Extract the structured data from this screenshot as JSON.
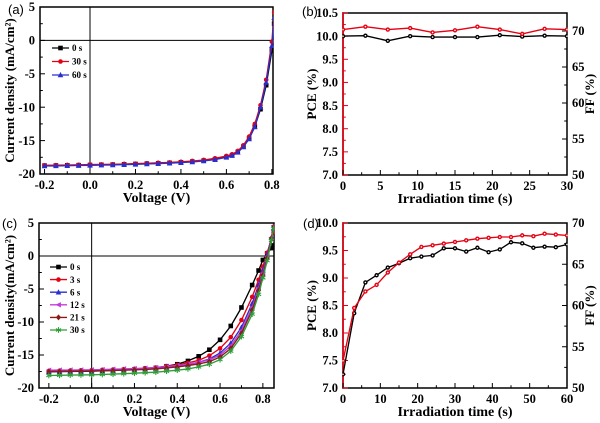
{
  "figure": {
    "background": "#ffffff"
  },
  "colors": {
    "black": "#000000",
    "red": "#e60012",
    "blue": "#2a2ecc",
    "magenta": "#c43bd9",
    "wine": "#8b1a1a",
    "green": "#2e9e38"
  },
  "chart_data": [
    {
      "panel_letter": "(a)",
      "type": "line",
      "xlabel": "Voltage (V)",
      "ylabel": "Current density (mA/cm²)",
      "xlim": [
        -0.22,
        0.805
      ],
      "ylim": [
        -20,
        5
      ],
      "xticks": [
        -0.2,
        0.0,
        0.2,
        0.4,
        0.6,
        0.8
      ],
      "xtick_labels": [
        "-0.2",
        "0.0",
        "0.2",
        "0.4",
        "0.6",
        "0.8"
      ],
      "yticks": [
        -20,
        -15,
        -10,
        -5,
        0,
        5
      ],
      "ytick_labels": [
        "-20",
        "-15",
        "-10",
        "-5",
        "0",
        "5"
      ],
      "x_minor": 0.1,
      "y_minor": 2.5,
      "zero_lines": true,
      "legend": true,
      "grid": false,
      "x": [
        -0.2,
        -0.15,
        -0.1,
        -0.05,
        0,
        0.05,
        0.1,
        0.15,
        0.2,
        0.25,
        0.3,
        0.35,
        0.4,
        0.45,
        0.5,
        0.55,
        0.6,
        0.625,
        0.65,
        0.675,
        0.7,
        0.725,
        0.75,
        0.775,
        0.8,
        0.81
      ],
      "series": [
        {
          "name": "0 s",
          "color": "#000000",
          "marker": "square",
          "axis": "left",
          "y": [
            -18.75,
            -18.73,
            -18.7,
            -18.68,
            -18.65,
            -18.62,
            -18.6,
            -18.55,
            -18.5,
            -18.45,
            -18.4,
            -18.33,
            -18.25,
            -18.15,
            -18.0,
            -17.8,
            -17.45,
            -17.2,
            -16.7,
            -15.9,
            -14.7,
            -12.9,
            -10.3,
            -6.7,
            -1.5,
            2.5
          ]
        },
        {
          "name": "30 s",
          "color": "#e60012",
          "marker": "circle",
          "axis": "left",
          "y": [
            -18.7,
            -18.68,
            -18.65,
            -18.63,
            -18.6,
            -18.57,
            -18.55,
            -18.5,
            -18.45,
            -18.4,
            -18.33,
            -18.27,
            -18.18,
            -18.05,
            -17.9,
            -17.65,
            -17.3,
            -17.05,
            -16.55,
            -15.7,
            -14.4,
            -12.5,
            -9.7,
            -5.9,
            -0.2,
            4.2
          ]
        },
        {
          "name": "60 s",
          "color": "#2a2ecc",
          "marker": "triangle",
          "axis": "left",
          "y": [
            -18.8,
            -18.78,
            -18.75,
            -18.73,
            -18.7,
            -18.67,
            -18.65,
            -18.6,
            -18.55,
            -18.5,
            -18.45,
            -18.38,
            -18.3,
            -18.2,
            -18.05,
            -17.85,
            -17.5,
            -17.25,
            -16.75,
            -15.95,
            -14.75,
            -12.95,
            -10.0,
            -6.3,
            -0.8,
            3.4
          ]
        }
      ]
    },
    {
      "panel_letter": "(b)",
      "type": "line",
      "xlabel": "Irradiation time (s)",
      "ylabel": "PCE (%)",
      "ylabel_right": "FF (%)",
      "xlim": [
        0,
        30
      ],
      "ylim": [
        7.0,
        10.5
      ],
      "ylim_right": [
        50,
        72.5
      ],
      "xticks": [
        0,
        5,
        10,
        15,
        20,
        25,
        30
      ],
      "xtick_labels": [
        "0",
        "5",
        "10",
        "15",
        "20",
        "25",
        "30"
      ],
      "yticks": [
        7.0,
        7.5,
        8.0,
        8.5,
        9.0,
        9.5,
        10.0,
        10.5
      ],
      "ytick_labels": [
        "7.0",
        "7.5",
        "8.0",
        "8.5",
        "9.0",
        "9.5",
        "10.0",
        "10.5"
      ],
      "yticks_right": [
        50,
        55,
        60,
        65,
        70
      ],
      "ytick_labels_right": [
        "50",
        "55",
        "60",
        "65",
        "70"
      ],
      "x_minor": 2.5,
      "y_minor": 0.25,
      "y_minor_right": 2.5,
      "zero_lines": false,
      "legend": false,
      "grid": false,
      "left_spine_color": "#e60012",
      "x": [
        0,
        3,
        6,
        9,
        12,
        15,
        18,
        21,
        24,
        27,
        30
      ],
      "series": [
        {
          "name": "PCE",
          "color": "#000000",
          "marker": "odot",
          "axis": "left",
          "y": [
            10.0,
            10.01,
            9.9,
            10.0,
            9.98,
            9.98,
            9.98,
            10.02,
            9.99,
            10.01,
            10.0
          ]
        },
        {
          "name": "FF",
          "color": "#e60012",
          "marker": "odot",
          "axis": "right",
          "y": [
            70.2,
            70.6,
            70.2,
            70.4,
            69.8,
            70.1,
            70.6,
            70.2,
            69.6,
            70.3,
            70.2
          ]
        }
      ]
    },
    {
      "panel_letter": "(c)",
      "type": "line",
      "xlabel": "Voltage (V)",
      "ylabel": "Current density(mA/cm²)",
      "xlim": [
        -0.246,
        0.852
      ],
      "ylim": [
        -20,
        5
      ],
      "xticks": [
        -0.2,
        0.0,
        0.2,
        0.4,
        0.6,
        0.8
      ],
      "xtick_labels": [
        "-0.2",
        "0.0",
        "0.2",
        "0.4",
        "0.6",
        "0.8"
      ],
      "yticks": [
        -20,
        -15,
        -10,
        -5,
        0,
        5
      ],
      "ytick_labels": [
        "-20",
        "-15",
        "-10",
        "-5",
        "0",
        "5"
      ],
      "x_minor": 0.1,
      "y_minor": 2.5,
      "zero_lines": true,
      "legend": true,
      "grid": false,
      "x": [
        -0.2,
        -0.15,
        -0.1,
        -0.05,
        0,
        0.05,
        0.1,
        0.15,
        0.2,
        0.25,
        0.3,
        0.35,
        0.4,
        0.45,
        0.5,
        0.55,
        0.6,
        0.65,
        0.7,
        0.75,
        0.78,
        0.8,
        0.82,
        0.84,
        0.85
      ],
      "series": [
        {
          "name": "0 s",
          "color": "#000000",
          "marker": "square",
          "axis": "left",
          "y": [
            -17.55,
            -17.52,
            -17.5,
            -17.47,
            -17.45,
            -17.4,
            -17.35,
            -17.28,
            -17.2,
            -17.08,
            -16.95,
            -16.7,
            -16.4,
            -15.9,
            -15.2,
            -14.2,
            -12.7,
            -10.6,
            -7.8,
            -4.4,
            -2.2,
            -0.6,
            0.4,
            1.2,
            1.6
          ]
        },
        {
          "name": "3 s",
          "color": "#e60012",
          "marker": "circle",
          "axis": "left",
          "y": [
            -17.4,
            -17.38,
            -17.35,
            -17.32,
            -17.3,
            -17.25,
            -17.2,
            -17.15,
            -17.1,
            -17.0,
            -16.9,
            -16.7,
            -16.5,
            -16.2,
            -15.8,
            -15.1,
            -14.0,
            -12.3,
            -9.7,
            -6.2,
            -3.6,
            -1.6,
            0.5,
            2.6,
            3.6
          ]
        },
        {
          "name": "6 s",
          "color": "#2a2ecc",
          "marker": "triangle",
          "axis": "left",
          "y": [
            -17.5,
            -17.47,
            -17.45,
            -17.42,
            -17.4,
            -17.35,
            -17.3,
            -17.25,
            -17.2,
            -17.1,
            -17.0,
            -16.85,
            -16.7,
            -16.45,
            -16.1,
            -15.6,
            -14.7,
            -13.2,
            -10.8,
            -7.2,
            -4.4,
            -2.2,
            0.2,
            2.8,
            4.2
          ]
        },
        {
          "name": "12 s",
          "color": "#c43bd9",
          "marker": "tri-left",
          "axis": "left",
          "y": [
            -17.3,
            -17.28,
            -17.27,
            -17.26,
            -17.25,
            -17.2,
            -17.15,
            -17.1,
            -17.05,
            -17.0,
            -16.9,
            -16.75,
            -16.6,
            -16.4,
            -16.1,
            -15.75,
            -15.0,
            -13.6,
            -11.3,
            -7.8,
            -4.9,
            -2.6,
            -0.1,
            2.8,
            4.6
          ]
        },
        {
          "name": "21 s",
          "color": "#8b1a1a",
          "marker": "diamond",
          "axis": "left",
          "y": [
            -17.5,
            -17.48,
            -17.46,
            -17.44,
            -17.42,
            -17.38,
            -17.34,
            -17.3,
            -17.25,
            -17.18,
            -17.1,
            -16.95,
            -16.8,
            -16.6,
            -16.35,
            -16.0,
            -15.3,
            -14.0,
            -11.7,
            -8.2,
            -5.2,
            -2.9,
            -0.3,
            2.7,
            4.4
          ]
        },
        {
          "name": "30 s",
          "color": "#2e9e38",
          "marker": "star",
          "axis": "left",
          "y": [
            -18.1,
            -18.07,
            -18.04,
            -18.02,
            -18.0,
            -17.95,
            -17.9,
            -17.83,
            -17.75,
            -17.68,
            -17.6,
            -17.45,
            -17.3,
            -17.1,
            -16.8,
            -16.4,
            -15.7,
            -14.4,
            -12.2,
            -8.8,
            -5.8,
            -3.3,
            -0.7,
            2.4,
            4.2
          ]
        }
      ]
    },
    {
      "panel_letter": "(d)",
      "type": "line",
      "xlabel": "Irradiation time (s)",
      "ylabel": "PCE (%)",
      "ylabel_right": "FF (%)",
      "xlim": [
        0,
        60
      ],
      "ylim": [
        7.0,
        10.0
      ],
      "ylim_right": [
        50,
        70
      ],
      "xticks": [
        0,
        10,
        20,
        30,
        40,
        50,
        60
      ],
      "xtick_labels": [
        "0",
        "10",
        "20",
        "30",
        "40",
        "50",
        "60"
      ],
      "yticks": [
        7.0,
        7.5,
        8.0,
        8.5,
        9.0,
        9.5,
        10.0
      ],
      "ytick_labels": [
        "7.0",
        "7.5",
        "8.0",
        "8.5",
        "9.0",
        "9.5",
        "10.0"
      ],
      "yticks_right": [
        50,
        55,
        60,
        65,
        70
      ],
      "ytick_labels_right": [
        "50",
        "55",
        "60",
        "65",
        "70"
      ],
      "x_minor": 5,
      "y_minor": 0.25,
      "y_minor_right": 2.5,
      "zero_lines": false,
      "legend": false,
      "grid": false,
      "left_spine_color": "#e60012",
      "x": [
        0,
        3,
        6,
        9,
        12,
        15,
        18,
        21,
        24,
        27,
        30,
        33,
        36,
        39,
        42,
        45,
        48,
        51,
        54,
        57,
        60
      ],
      "series": [
        {
          "name": "PCE",
          "color": "#000000",
          "marker": "odot",
          "axis": "left",
          "y": [
            7.25,
            8.36,
            8.92,
            9.05,
            9.19,
            9.27,
            9.36,
            9.39,
            9.41,
            9.54,
            9.54,
            9.48,
            9.55,
            9.47,
            9.52,
            9.65,
            9.63,
            9.55,
            9.57,
            9.56,
            9.61
          ]
        },
        {
          "name": "FF",
          "color": "#e60012",
          "marker": "odot",
          "axis": "right",
          "y": [
            53.3,
            59.7,
            61.7,
            62.5,
            64.0,
            65.2,
            66.2,
            67.1,
            67.3,
            67.5,
            67.7,
            67.9,
            68.1,
            68.2,
            68.3,
            68.3,
            68.5,
            68.4,
            68.7,
            68.6,
            68.5
          ]
        }
      ]
    }
  ]
}
